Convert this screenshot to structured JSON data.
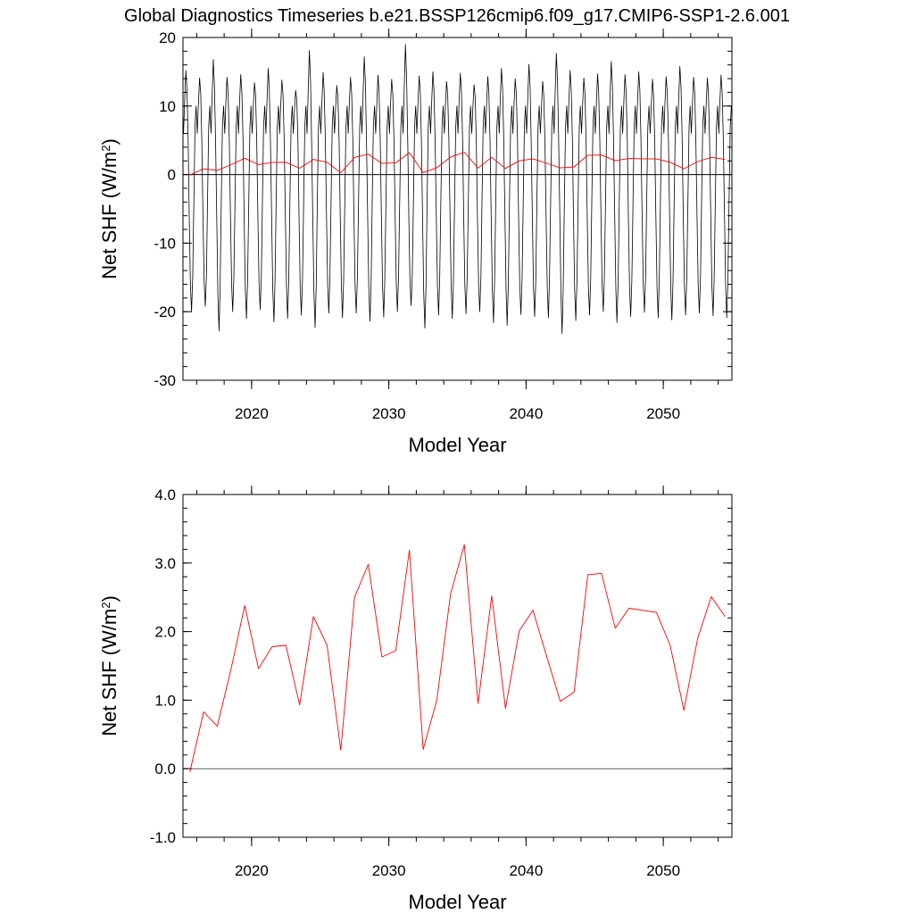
{
  "title": "Global Diagnostics Timeseries b.e21.BSSP126cmip6.f09_g17.CMIP6-SSP1-2.6.001",
  "colors": {
    "monthly": "#000000",
    "annual": "#ff0000",
    "zero_line": "#000000"
  },
  "chart_data": [
    {
      "type": "line",
      "xlabel": "Model Year",
      "ylabel": "Net SHF (W/m",
      "ylabel_sup": "2",
      "ylabel_close": ")",
      "xlim": [
        2015,
        2055
      ],
      "ylim": [
        -30,
        20
      ],
      "xticks": [
        2020,
        2030,
        2040,
        2050
      ],
      "yticks": [
        -30,
        -20,
        -10,
        0,
        10,
        20
      ],
      "ytick_labels": [
        "-30",
        "-20",
        "-10",
        "0",
        "10",
        "20"
      ],
      "reference_line": 0,
      "monthly": {
        "start_year": 2015,
        "monthly_pattern": [
          6,
          10.5,
          14.5,
          12,
          5,
          -6,
          -16,
          -20,
          -15,
          -4,
          7,
          10
        ],
        "peaks": [
          15.2,
          14.1,
          16.8,
          14.2,
          14.6,
          13.4,
          15.5,
          13.8,
          12.3,
          18.1,
          14.9,
          13.0,
          14.2,
          17.2,
          14.5,
          13.9,
          19.0,
          14.4,
          15.0,
          13.6,
          14.8,
          13.1,
          14.3,
          15.5,
          14.0,
          16.1,
          13.6,
          17.7,
          15.2,
          14.1,
          14.7,
          16.5,
          14.6,
          15.0,
          13.9,
          14.3,
          15.8,
          14.2,
          14.1,
          14.5
        ],
        "troughs": [
          -20.0,
          -19.2,
          -22.8,
          -20.0,
          -21.0,
          -19.7,
          -21.5,
          -21.0,
          -20.5,
          -22.3,
          -20.2,
          -20.9,
          -20.2,
          -21.4,
          -20.8,
          -20.0,
          -19.1,
          -22.4,
          -20.5,
          -21.0,
          -20.3,
          -20.0,
          -21.6,
          -22.0,
          -20.4,
          -20.7,
          -20.9,
          -23.2,
          -21.3,
          -20.5,
          -20.0,
          -21.6,
          -20.7,
          -20.1,
          -20.9,
          -21.2,
          -20.5,
          -20.2,
          -20.6,
          -20.9
        ]
      },
      "annual": {
        "x": [
          2015.5,
          2016.5,
          2017.5,
          2018.5,
          2019.5,
          2020.5,
          2021.5,
          2022.5,
          2023.5,
          2024.5,
          2025.5,
          2026.5,
          2027.5,
          2028.5,
          2029.5,
          2030.5,
          2031.5,
          2032.5,
          2033.5,
          2034.5,
          2035.5,
          2036.5,
          2037.5,
          2038.5,
          2039.5,
          2040.5,
          2041.5,
          2042.5,
          2043.5,
          2044.5,
          2045.5,
          2046.5,
          2047.5,
          2048.5,
          2049.5,
          2050.5,
          2051.5,
          2052.5,
          2053.5,
          2054.5
        ],
        "y": [
          -0.05,
          0.83,
          0.62,
          1.45,
          2.38,
          1.46,
          1.78,
          1.8,
          0.93,
          2.22,
          1.8,
          0.27,
          2.5,
          2.98,
          1.63,
          1.72,
          3.19,
          0.28,
          1.0,
          2.55,
          3.27,
          0.95,
          2.52,
          0.88,
          2.01,
          2.31,
          1.64,
          0.98,
          1.12,
          2.83,
          2.85,
          2.05,
          2.34,
          2.31,
          2.28,
          1.8,
          0.85,
          1.9,
          2.51,
          2.22
        ]
      }
    },
    {
      "type": "line",
      "xlabel": "Model Year",
      "ylabel": "Net SHF (W/m",
      "ylabel_sup": "2",
      "ylabel_close": ")",
      "xlim": [
        2015,
        2055
      ],
      "ylim": [
        -1,
        4
      ],
      "xticks": [
        2020,
        2030,
        2040,
        2050
      ],
      "yticks": [
        -1,
        0,
        1,
        2,
        3,
        4
      ],
      "ytick_labels": [
        "-1.0",
        "0.0",
        "1.0",
        "2.0",
        "3.0",
        "4.0"
      ],
      "reference_line": 0,
      "annual": {
        "x": [
          2015.5,
          2016.5,
          2017.5,
          2018.5,
          2019.5,
          2020.5,
          2021.5,
          2022.5,
          2023.5,
          2024.5,
          2025.5,
          2026.5,
          2027.5,
          2028.5,
          2029.5,
          2030.5,
          2031.5,
          2032.5,
          2033.5,
          2034.5,
          2035.5,
          2036.5,
          2037.5,
          2038.5,
          2039.5,
          2040.5,
          2041.5,
          2042.5,
          2043.5,
          2044.5,
          2045.5,
          2046.5,
          2047.5,
          2048.5,
          2049.5,
          2050.5,
          2051.5,
          2052.5,
          2053.5,
          2054.5
        ],
        "y": [
          -0.05,
          0.83,
          0.62,
          1.45,
          2.38,
          1.46,
          1.78,
          1.8,
          0.93,
          2.22,
          1.8,
          0.27,
          2.5,
          2.98,
          1.63,
          1.72,
          3.19,
          0.28,
          1.0,
          2.55,
          3.27,
          0.95,
          2.52,
          0.88,
          2.01,
          2.31,
          1.64,
          0.98,
          1.12,
          2.83,
          2.85,
          2.05,
          2.34,
          2.31,
          2.28,
          1.8,
          0.85,
          1.9,
          2.51,
          2.22
        ]
      }
    }
  ]
}
